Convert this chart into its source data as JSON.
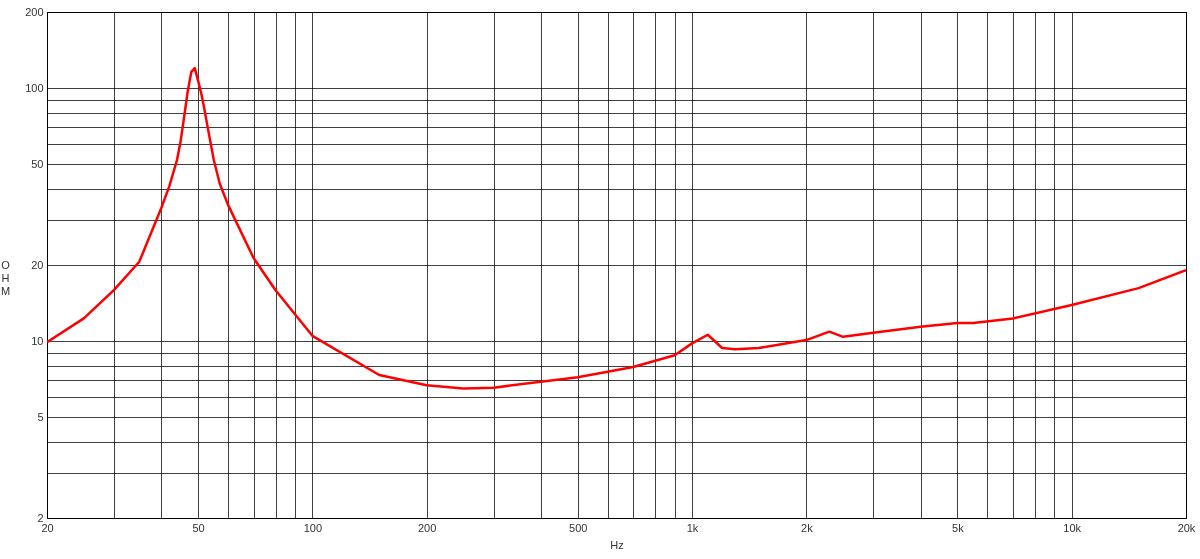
{
  "chart_data": {
    "type": "line",
    "xlabel": "Hz",
    "ylabel": "OHM",
    "log": "xy",
    "grid": true,
    "marker": "none",
    "line_style": "solid",
    "x": [
      20,
      25,
      30,
      35,
      40,
      42,
      44,
      45,
      46,
      47,
      48,
      49,
      50,
      51,
      52,
      53,
      55,
      57,
      60,
      70,
      80,
      100,
      150,
      200,
      250,
      300,
      500,
      700,
      900,
      1000,
      1100,
      1200,
      1300,
      1500,
      2000,
      2300,
      2500,
      3000,
      4000,
      5000,
      5500,
      7000,
      10000,
      15000,
      20000
    ],
    "series": [
      {
        "color": "#ff0000",
        "values": [
          9.9,
          12.3,
          15.9,
          20.6,
          33.6,
          41,
          52,
          62,
          78,
          98,
          116,
          120,
          107,
          95,
          82,
          70,
          52,
          42,
          34.5,
          21.3,
          15.9,
          10.5,
          7.35,
          6.7,
          6.5,
          6.55,
          7.2,
          7.9,
          8.8,
          9.8,
          10.6,
          9.4,
          9.3,
          9.4,
          10.1,
          10.9,
          10.4,
          10.8,
          11.4,
          11.8,
          11.8,
          12.3,
          13.9,
          16.2,
          19.1
        ]
      }
    ],
    "xlim": [
      20,
      20000
    ],
    "ylim": [
      2,
      200
    ],
    "xticks": [
      20,
      {
        "value": 30,
        "label": null
      },
      {
        "value": 40,
        "label": null
      },
      50,
      {
        "value": 60,
        "label": null
      },
      {
        "value": 70,
        "label": null
      },
      {
        "value": 80,
        "label": null
      },
      {
        "value": 90,
        "label": null
      },
      100,
      200,
      {
        "value": 300,
        "label": null
      },
      {
        "value": 400,
        "label": null
      },
      500,
      {
        "value": 600,
        "label": null
      },
      {
        "value": 700,
        "label": null
      },
      {
        "value": 800,
        "label": null
      },
      {
        "value": 900,
        "label": null
      },
      {
        "value": 1000,
        "label": "1k"
      },
      {
        "value": 2000,
        "label": "2k"
      },
      {
        "value": 3000,
        "label": null
      },
      {
        "value": 4000,
        "label": null
      },
      {
        "value": 5000,
        "label": "5k"
      },
      {
        "value": 6000,
        "label": null
      },
      {
        "value": 7000,
        "label": null
      },
      {
        "value": 8000,
        "label": null
      },
      {
        "value": 9000,
        "label": null
      },
      {
        "value": 10000,
        "label": "10k"
      },
      {
        "value": 20000,
        "label": "20k"
      }
    ],
    "yticks": [
      2,
      {
        "value": 3,
        "label": null
      },
      {
        "value": 4,
        "label": null
      },
      5,
      {
        "value": 6,
        "label": null
      },
      {
        "value": 7,
        "label": null
      },
      {
        "value": 8,
        "label": null
      },
      {
        "value": 9,
        "label": null
      },
      10,
      20,
      {
        "value": 30,
        "label": null
      },
      {
        "value": 40,
        "label": null
      },
      50,
      {
        "value": 60,
        "label": null
      },
      {
        "value": 70,
        "label": null
      },
      {
        "value": 80,
        "label": null
      },
      {
        "value": 90,
        "label": null
      },
      100,
      200
    ]
  }
}
